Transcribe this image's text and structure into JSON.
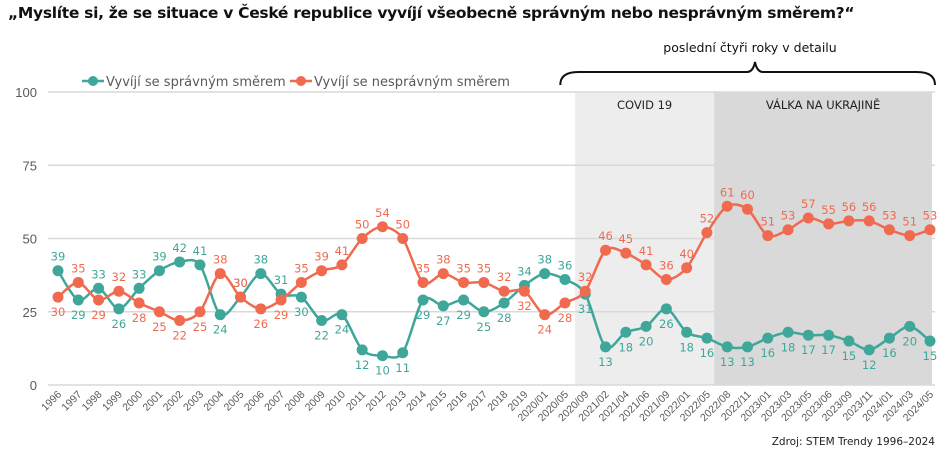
{
  "title": "„Myslíte si, že se situace v České republice vyvíjí všeobecně správným nebo nesprávným směrem?“",
  "source": "Zdroj: STEM Trendy 1996–2024",
  "colors": {
    "right_direction": "#3fa69a",
    "wrong_direction": "#f06a4f",
    "covid_band": "#ededed",
    "war_band": "#d9d9d9",
    "grid": "#d9d9d9"
  },
  "chart_data": {
    "type": "line",
    "title": "„Myslíte si, že se situace v České republice vyvíjí všeobecně správným nebo nesprávným směrem?“",
    "xlabel": "",
    "ylabel": "",
    "ylim": [
      0,
      100
    ],
    "yticks": [
      0,
      25,
      50,
      75,
      100
    ],
    "grid": true,
    "legend_position": "top-left",
    "categories": [
      "1996",
      "1997",
      "1998",
      "1999",
      "2000",
      "2001",
      "2002",
      "2003",
      "2004",
      "2005",
      "2006",
      "2007",
      "2008",
      "2009",
      "2010",
      "2011",
      "2012",
      "2013",
      "2014",
      "2015",
      "2016",
      "2017",
      "2018",
      "2019",
      "2020/01",
      "2020/05",
      "2020/09",
      "2021/02",
      "2021/04",
      "2021/06",
      "2021/09",
      "2022/01",
      "2022/05",
      "2022/08",
      "2022/11",
      "2023/01",
      "2023/03",
      "2023/05",
      "2023/06",
      "2023/09",
      "2023/11",
      "2024/01",
      "2024/03",
      "2024/05"
    ],
    "series": [
      {
        "name": "Vyvíjí se správným směrem",
        "color": "#3fa69a",
        "values": [
          39,
          29,
          33,
          26,
          33,
          39,
          42,
          41,
          24,
          30,
          38,
          31,
          30,
          22,
          24,
          12,
          10,
          11,
          29,
          27,
          29,
          25,
          28,
          34,
          38,
          36,
          31,
          13,
          18,
          20,
          26,
          18,
          16,
          13,
          13,
          16,
          18,
          17,
          17,
          15,
          12,
          16,
          20,
          15
        ]
      },
      {
        "name": "Vyvíjí se nesprávným směrem",
        "color": "#f06a4f",
        "values": [
          30,
          35,
          29,
          32,
          28,
          25,
          22,
          25,
          38,
          30,
          26,
          29,
          35,
          39,
          41,
          50,
          54,
          50,
          35,
          38,
          35,
          35,
          32,
          32,
          24,
          28,
          32,
          46,
          45,
          41,
          36,
          40,
          52,
          61,
          60,
          51,
          53,
          57,
          55,
          56,
          56,
          53,
          51,
          53
        ]
      }
    ],
    "bands": [
      {
        "label": "COVID 19",
        "from": "2020/09",
        "to": "2022/05"
      },
      {
        "label": "VÁLKA NA UKRAJINĚ",
        "from": "2022/05",
        "to": "2024/05"
      }
    ],
    "annotation": {
      "label": "poslední čtyři roky v detailu",
      "from": "2020/09",
      "to": "2024/05"
    }
  }
}
